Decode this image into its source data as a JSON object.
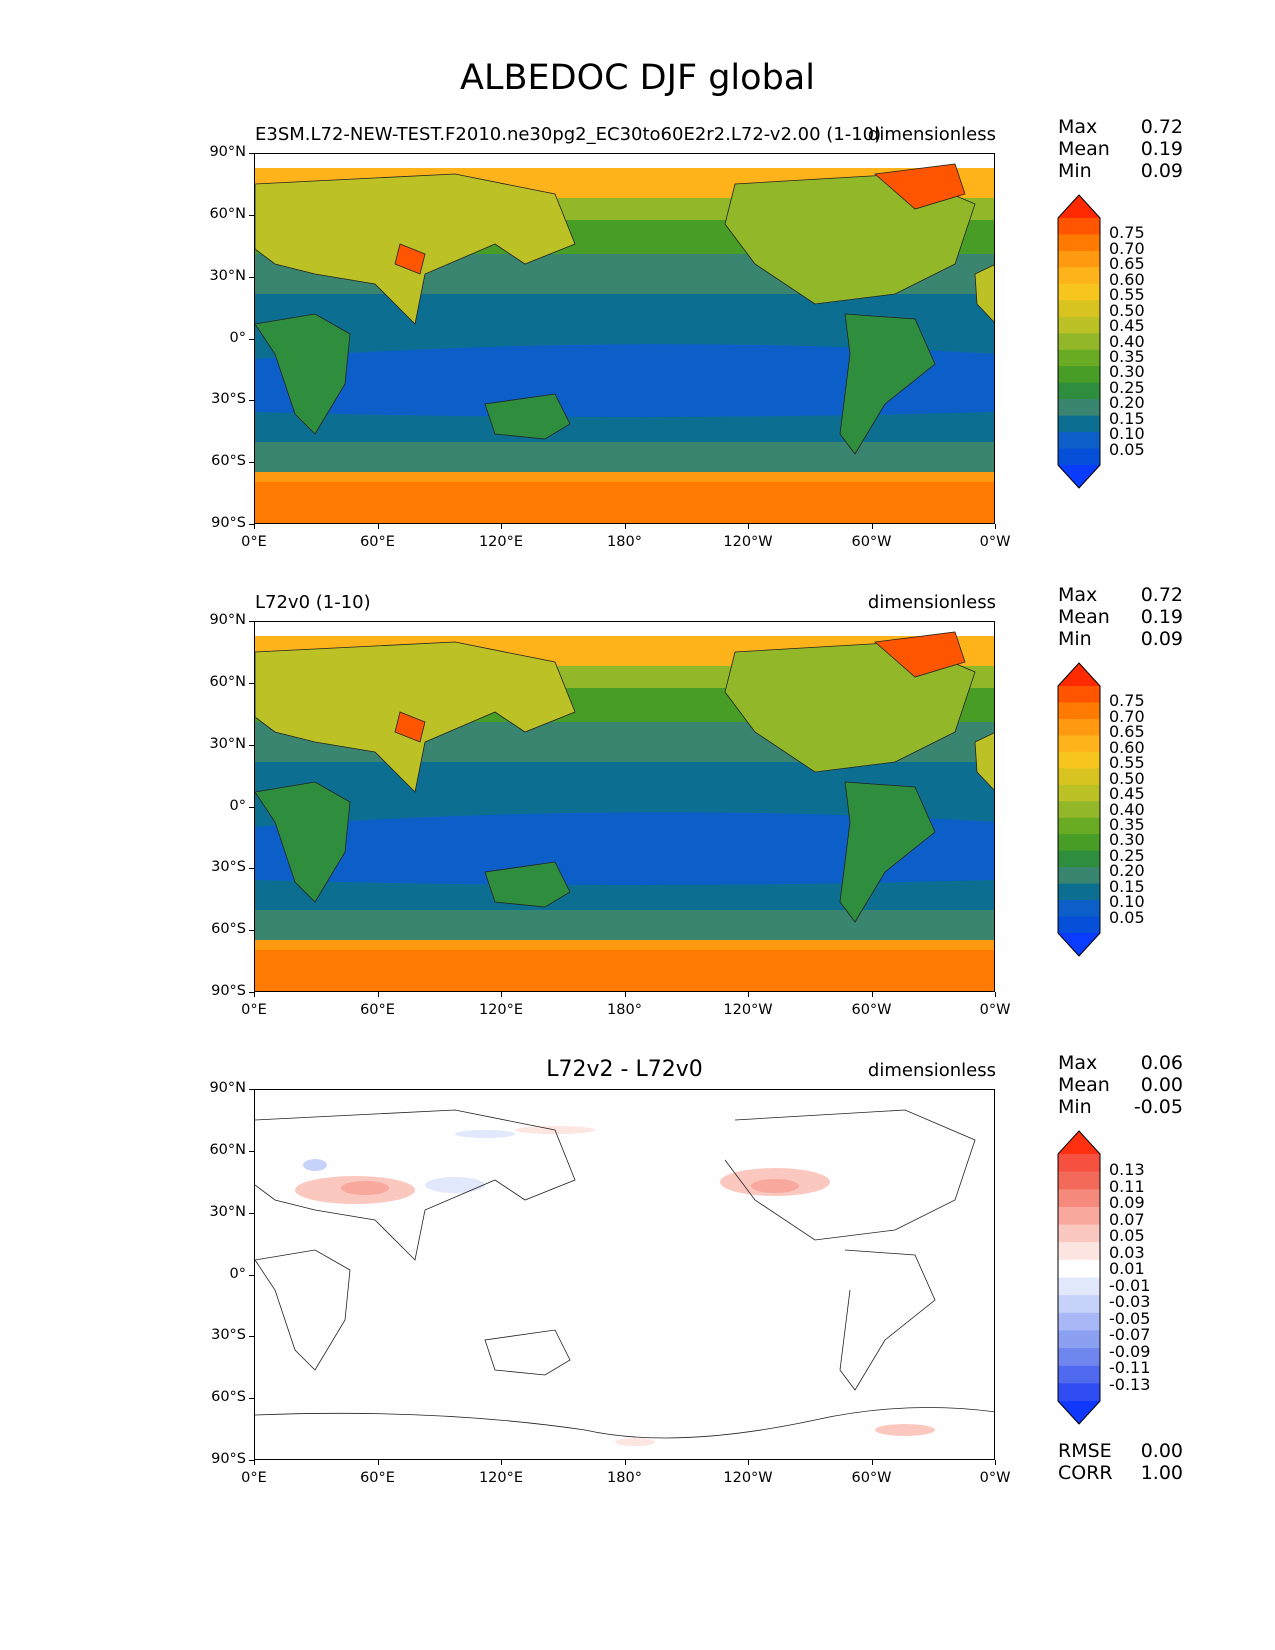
{
  "figure": {
    "title": "ALBEDOC DJF global"
  },
  "panels": [
    {
      "id": "test",
      "title_left": "E3SM.L72-NEW-TEST.F2010.ne30pg2_EC30to60E2r2.L72-v2.00 (1-10)",
      "title_center": "",
      "title_right": "dimensionless",
      "stats": [
        {
          "label": "Max",
          "value": "0.72"
        },
        {
          "label": "Mean",
          "value": "0.19"
        },
        {
          "label": "Min",
          "value": "0.09"
        }
      ],
      "colorbar": {
        "labels": [
          "0.75",
          "0.70",
          "0.65",
          "0.60",
          "0.55",
          "0.50",
          "0.45",
          "0.40",
          "0.35",
          "0.30",
          "0.25",
          "0.20",
          "0.15",
          "0.10",
          "0.05"
        ],
        "colors": [
          "#ff2a00",
          "#ff5500",
          "#ff7a00",
          "#ff9a10",
          "#ffb31a",
          "#f6c51e",
          "#d9c320",
          "#bcc226",
          "#92b82a",
          "#69ac23",
          "#479d26",
          "#2f8d3e",
          "#3a8570",
          "#0c6f91",
          "#0c5fc8",
          "#064fd8",
          "#0a3cff"
        ],
        "extend": "both"
      },
      "footer": []
    },
    {
      "id": "reference",
      "title_left": "L72v0 (1-10)",
      "title_center": "",
      "title_right": "dimensionless",
      "stats": [
        {
          "label": "Max",
          "value": "0.72"
        },
        {
          "label": "Mean",
          "value": "0.19"
        },
        {
          "label": "Min",
          "value": "0.09"
        }
      ],
      "colorbar": {
        "labels": [
          "0.75",
          "0.70",
          "0.65",
          "0.60",
          "0.55",
          "0.50",
          "0.45",
          "0.40",
          "0.35",
          "0.30",
          "0.25",
          "0.20",
          "0.15",
          "0.10",
          "0.05"
        ],
        "colors": [
          "#ff2a00",
          "#ff5500",
          "#ff7a00",
          "#ff9a10",
          "#ffb31a",
          "#f6c51e",
          "#d9c320",
          "#bcc226",
          "#92b82a",
          "#69ac23",
          "#479d26",
          "#2f8d3e",
          "#3a8570",
          "#0c6f91",
          "#0c5fc8",
          "#064fd8",
          "#0a3cff"
        ],
        "extend": "both"
      },
      "footer": []
    },
    {
      "id": "difference",
      "title_left": "",
      "title_center": "L72v2 - L72v0",
      "title_right": "dimensionless",
      "stats": [
        {
          "label": "Max",
          "value": "0.06"
        },
        {
          "label": "Mean",
          "value": "0.00"
        },
        {
          "label": "Min",
          "value": "-0.05"
        }
      ],
      "colorbar": {
        "labels": [
          "0.13",
          "0.11",
          "0.09",
          "0.07",
          "0.05",
          "0.03",
          "0.01",
          "-0.01",
          "-0.03",
          "-0.05",
          "-0.07",
          "-0.09",
          "-0.11",
          "-0.13"
        ],
        "colors": [
          "#ff3010",
          "#f65040",
          "#f46a5a",
          "#f58a7c",
          "#f8a89c",
          "#fbc8c0",
          "#fde6e2",
          "#ffffff",
          "#e2e8fc",
          "#c6d2fa",
          "#a8b8f6",
          "#8ca0f2",
          "#6f86ee",
          "#4f6aee",
          "#2f4df2",
          "#1038ff"
        ],
        "extend": "both"
      },
      "footer": [
        {
          "label": "RMSE",
          "value": "0.00"
        },
        {
          "label": "CORR",
          "value": "1.00"
        }
      ]
    }
  ],
  "axes": {
    "lat_labels": [
      "90°N",
      "60°N",
      "30°N",
      "0°",
      "30°S",
      "60°S",
      "90°S"
    ],
    "lon_labels": [
      "0°E",
      "60°E",
      "120°E",
      "180°",
      "120°W",
      "60°W",
      "0°W"
    ]
  }
}
